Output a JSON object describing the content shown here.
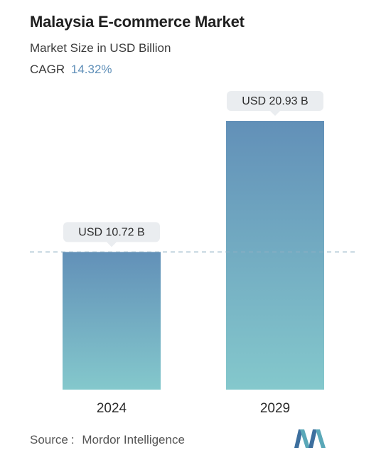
{
  "header": {
    "title": "Malaysia E-commerce Market",
    "subtitle": "Market Size in USD Billion",
    "cagr_label": "CAGR",
    "cagr_value": "14.32%"
  },
  "footer": {
    "source_label": "Source",
    "source_sep": ":",
    "source_name": "Mordor Intelligence"
  },
  "colors": {
    "bar_top": "#6290b8",
    "bar_bottom": "#84c8cc",
    "label_bg": "#eaedf0",
    "dashed_line": "#8fb0c4",
    "cagr_accent": "#5f8fb8"
  },
  "chart_data": {
    "type": "bar",
    "categories": [
      "2024",
      "2029"
    ],
    "values": [
      10.72,
      20.93
    ],
    "data_labels": [
      "USD 10.72 B",
      "USD 20.93 B"
    ],
    "title": "Malaysia E-commerce Market",
    "ylabel": "Market Size in USD Billion",
    "ylim": [
      0,
      20.93
    ],
    "grid": false,
    "reference_line_at": 10.72
  }
}
